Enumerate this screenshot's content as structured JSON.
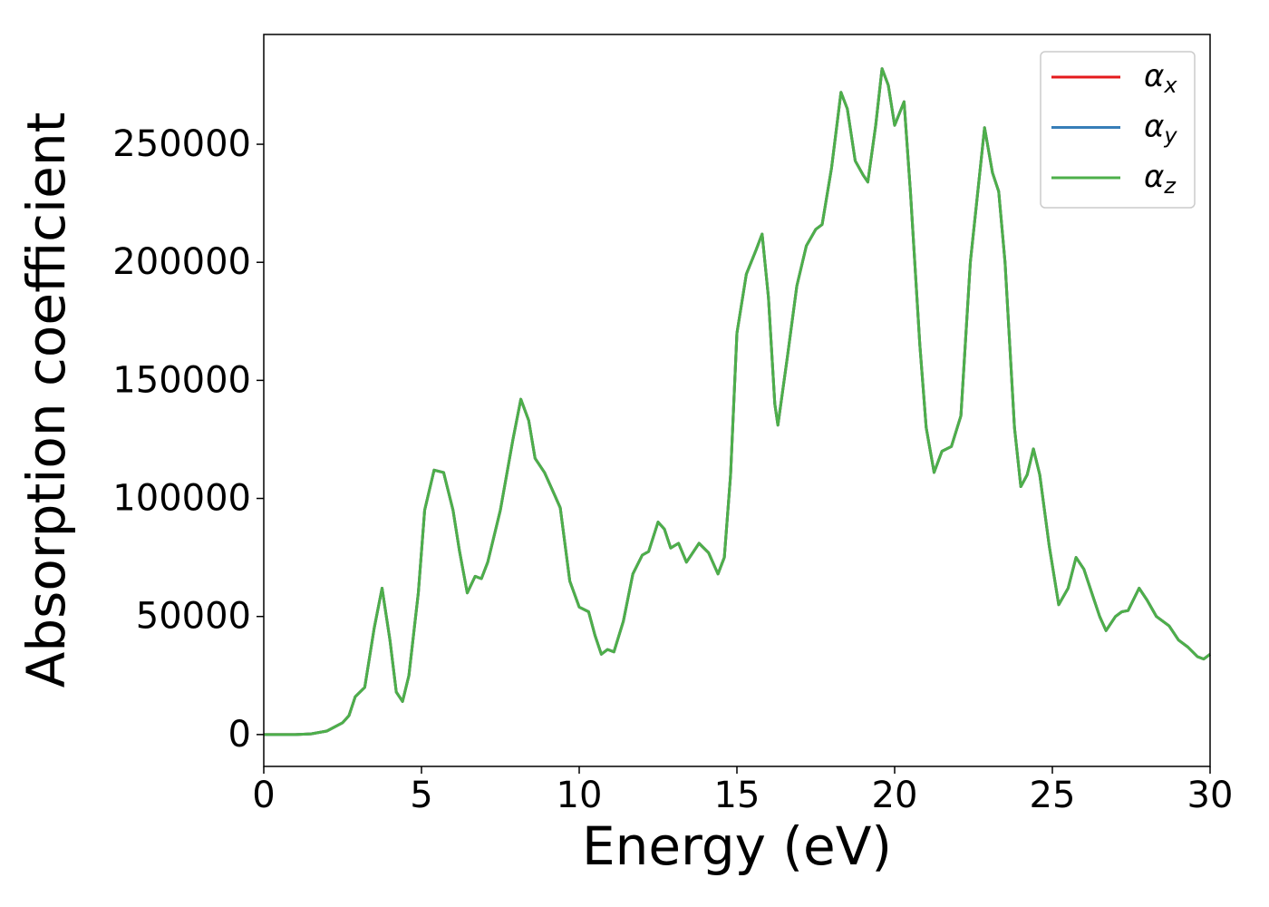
{
  "chart_data": {
    "type": "line",
    "xlabel": "Energy (eV)",
    "ylabel": "Absorption coefficient",
    "x": [
      0,
      1,
      1.5,
      2,
      2.5,
      2.7,
      2.9,
      3.2,
      3.5,
      3.75,
      4.0,
      4.2,
      4.4,
      4.6,
      4.9,
      5.1,
      5.4,
      5.7,
      6.0,
      6.2,
      6.45,
      6.7,
      6.9,
      7.1,
      7.5,
      7.9,
      8.15,
      8.4,
      8.6,
      8.9,
      9.2,
      9.4,
      9.7,
      10.0,
      10.3,
      10.5,
      10.7,
      10.9,
      11.1,
      11.4,
      11.7,
      12.0,
      12.2,
      12.5,
      12.7,
      12.9,
      13.15,
      13.4,
      13.8,
      14.1,
      14.4,
      14.6,
      14.8,
      15.0,
      15.3,
      15.6,
      15.8,
      16.0,
      16.2,
      16.3,
      16.6,
      16.9,
      17.2,
      17.5,
      17.7,
      18.0,
      18.3,
      18.5,
      18.75,
      19.0,
      19.15,
      19.4,
      19.6,
      19.8,
      20.0,
      20.3,
      20.5,
      20.8,
      21.0,
      21.25,
      21.5,
      21.8,
      22.1,
      22.4,
      22.85,
      23.1,
      23.3,
      23.5,
      23.8,
      24.0,
      24.2,
      24.4,
      24.6,
      24.9,
      25.2,
      25.5,
      25.75,
      26.0,
      26.3,
      26.5,
      26.7,
      27.0,
      27.2,
      27.4,
      27.75,
      28.0,
      28.3,
      28.7,
      29.0,
      29.3,
      29.6,
      29.8,
      30.0
    ],
    "series": [
      {
        "name": "αx",
        "color": "#e41a1c",
        "values": [
          0,
          0,
          300,
          1500,
          5000,
          8000,
          16000,
          20000,
          45000,
          62000,
          40000,
          18000,
          14000,
          25000,
          60000,
          95000,
          112000,
          111000,
          95000,
          78000,
          60000,
          67000,
          66000,
          73000,
          95000,
          125000,
          142000,
          133000,
          117000,
          111000,
          102000,
          96000,
          65000,
          54000,
          52000,
          42000,
          34000,
          36000,
          35000,
          48000,
          68000,
          76000,
          77500,
          90000,
          87000,
          79000,
          81000,
          73000,
          81000,
          77000,
          68000,
          75000,
          110000,
          170000,
          195000,
          205000,
          212000,
          185000,
          140000,
          131000,
          160000,
          190000,
          207000,
          214000,
          216000,
          240000,
          272000,
          265000,
          243000,
          237000,
          234000,
          258000,
          282000,
          275000,
          258000,
          268000,
          230000,
          165000,
          130000,
          111000,
          120000,
          122000,
          135000,
          200000,
          257000,
          238000,
          230000,
          200000,
          130000,
          105000,
          110000,
          121000,
          110000,
          80000,
          55000,
          62000,
          75000,
          70000,
          58000,
          50000,
          44000,
          50000,
          52000,
          52500,
          62000,
          57000,
          50000,
          46000,
          40000,
          37000,
          33000,
          32000,
          34000
        ]
      },
      {
        "name": "αy",
        "color": "#377eb8",
        "values": [
          0,
          0,
          300,
          1500,
          5000,
          8000,
          16000,
          20000,
          45000,
          62000,
          40000,
          18000,
          14000,
          25000,
          60000,
          95000,
          112000,
          111000,
          95000,
          78000,
          60000,
          67000,
          66000,
          73000,
          95000,
          125000,
          142000,
          133000,
          117000,
          111000,
          102000,
          96000,
          65000,
          54000,
          52000,
          42000,
          34000,
          36000,
          35000,
          48000,
          68000,
          76000,
          77500,
          90000,
          87000,
          79000,
          81000,
          73000,
          81000,
          77000,
          68000,
          75000,
          110000,
          170000,
          195000,
          205000,
          212000,
          185000,
          140000,
          131000,
          160000,
          190000,
          207000,
          214000,
          216000,
          240000,
          272000,
          265000,
          243000,
          237000,
          234000,
          258000,
          282000,
          275000,
          258000,
          268000,
          230000,
          165000,
          130000,
          111000,
          120000,
          122000,
          135000,
          200000,
          257000,
          238000,
          230000,
          200000,
          130000,
          105000,
          110000,
          121000,
          110000,
          80000,
          55000,
          62000,
          75000,
          70000,
          58000,
          50000,
          44000,
          50000,
          52000,
          52500,
          62000,
          57000,
          50000,
          46000,
          40000,
          37000,
          33000,
          32000,
          34000
        ]
      },
      {
        "name": "αz",
        "color": "#4daf4a",
        "values": [
          0,
          0,
          300,
          1500,
          5000,
          8000,
          16000,
          20000,
          45000,
          62000,
          40000,
          18000,
          14000,
          25000,
          60000,
          95000,
          112000,
          111000,
          95000,
          78000,
          60000,
          67000,
          66000,
          73000,
          95000,
          125000,
          142000,
          133000,
          117000,
          111000,
          102000,
          96000,
          65000,
          54000,
          52000,
          42000,
          34000,
          36000,
          35000,
          48000,
          68000,
          76000,
          77500,
          90000,
          87000,
          79000,
          81000,
          73000,
          81000,
          77000,
          68000,
          75000,
          110000,
          170000,
          195000,
          205000,
          212000,
          185000,
          140000,
          131000,
          160000,
          190000,
          207000,
          214000,
          216000,
          240000,
          272000,
          265000,
          243000,
          237000,
          234000,
          258000,
          282000,
          275000,
          258000,
          268000,
          230000,
          165000,
          130000,
          111000,
          120000,
          122000,
          135000,
          200000,
          257000,
          238000,
          230000,
          200000,
          130000,
          105000,
          110000,
          121000,
          110000,
          80000,
          55000,
          62000,
          75000,
          70000,
          58000,
          50000,
          44000,
          50000,
          52000,
          52500,
          62000,
          57000,
          50000,
          46000,
          40000,
          37000,
          33000,
          32000,
          34000
        ]
      }
    ],
    "xlim": [
      0,
      30
    ],
    "xticks": [
      0,
      5,
      10,
      15,
      20,
      25,
      30
    ],
    "ylim": [
      -13500,
      296500
    ],
    "yticks": [
      0,
      50000,
      100000,
      150000,
      200000,
      250000
    ],
    "grid": false,
    "legend": "upper right"
  }
}
